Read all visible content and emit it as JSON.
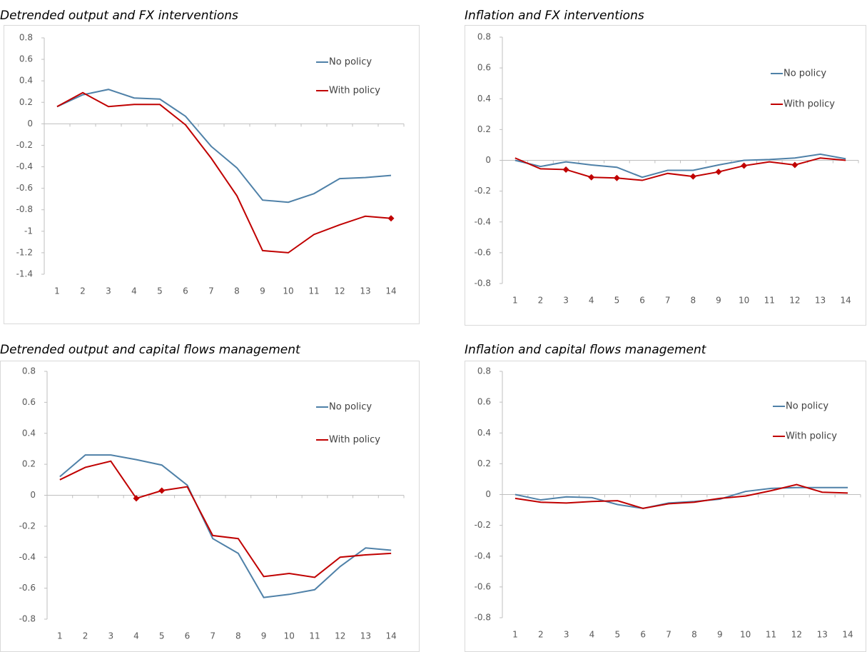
{
  "chart_data": [
    {
      "type": "line",
      "title": "Detrended output and FX interventions",
      "categories": [
        "1",
        "2",
        "3",
        "4",
        "5",
        "6",
        "7",
        "8",
        "9",
        "10",
        "11",
        "12",
        "13",
        "14"
      ],
      "ylim": [
        -1.4,
        0.8
      ],
      "yticks": [
        -1.4,
        -1.2,
        -1,
        -0.8,
        -0.6,
        -0.4,
        -0.2,
        0,
        0.2,
        0.4,
        0.6,
        0.8
      ],
      "legend": "upper right",
      "series": [
        {
          "name": "No policy",
          "color": "#4f81a8",
          "values": [
            0.16,
            0.27,
            0.32,
            0.24,
            0.23,
            0.07,
            -0.21,
            -0.41,
            -0.71,
            -0.73,
            -0.65,
            -0.51,
            -0.5,
            -0.48
          ]
        },
        {
          "name": "With policy",
          "color": "#c00000",
          "values": [
            0.16,
            0.29,
            0.16,
            0.18,
            0.18,
            -0.01,
            -0.32,
            -0.67,
            -1.18,
            -1.2,
            -1.03,
            -0.94,
            -0.86,
            -0.88
          ],
          "markers": [
            false,
            false,
            false,
            false,
            false,
            false,
            false,
            false,
            false,
            false,
            false,
            false,
            false,
            true
          ]
        }
      ]
    },
    {
      "type": "line",
      "title": "Inflation and FX interventions",
      "categories": [
        "1",
        "2",
        "3",
        "4",
        "5",
        "6",
        "7",
        "8",
        "9",
        "10",
        "11",
        "12",
        "13",
        "14"
      ],
      "ylim": [
        -0.8,
        0.8
      ],
      "yticks": [
        -0.8,
        -0.6,
        -0.4,
        -0.2,
        0,
        0.2,
        0.4,
        0.6,
        0.8
      ],
      "legend": "upper right",
      "series": [
        {
          "name": "No policy",
          "color": "#4f81a8",
          "values": [
            0,
            -0.04,
            -0.01,
            -0.03,
            -0.045,
            -0.11,
            -0.065,
            -0.065,
            -0.03,
            0,
            0.005,
            0.015,
            0.04,
            0.01
          ]
        },
        {
          "name": "With policy",
          "color": "#c00000",
          "values": [
            0.015,
            -0.055,
            -0.06,
            -0.11,
            -0.115,
            -0.13,
            -0.085,
            -0.105,
            -0.075,
            -0.035,
            -0.01,
            -0.03,
            0.015,
            0
          ],
          "markers": [
            false,
            false,
            true,
            true,
            true,
            false,
            false,
            true,
            true,
            true,
            false,
            true,
            false,
            false
          ]
        }
      ]
    },
    {
      "type": "line",
      "title": "Detrended output and capital flows management",
      "categories": [
        "1",
        "2",
        "3",
        "4",
        "5",
        "6",
        "7",
        "8",
        "9",
        "10",
        "11",
        "12",
        "13",
        "14"
      ],
      "ylim": [
        -0.8,
        0.8
      ],
      "yticks": [
        -0.8,
        -0.6,
        -0.4,
        -0.2,
        0,
        0.2,
        0.4,
        0.6,
        0.8
      ],
      "legend": "upper right",
      "series": [
        {
          "name": "No policy",
          "color": "#4f81a8",
          "values": [
            0.12,
            0.26,
            0.26,
            0.23,
            0.195,
            0.065,
            -0.28,
            -0.375,
            -0.66,
            -0.64,
            -0.61,
            -0.46,
            -0.34,
            -0.355
          ]
        },
        {
          "name": "With policy",
          "color": "#c00000",
          "values": [
            0.1,
            0.18,
            0.22,
            -0.02,
            0.03,
            0.055,
            -0.26,
            -0.28,
            -0.525,
            -0.505,
            -0.53,
            -0.4,
            -0.385,
            -0.375
          ],
          "markers": [
            false,
            false,
            false,
            true,
            true,
            false,
            false,
            false,
            false,
            false,
            false,
            false,
            false,
            false
          ]
        }
      ]
    },
    {
      "type": "line",
      "title": "Inflation and capital flows management",
      "categories": [
        "1",
        "2",
        "3",
        "4",
        "5",
        "6",
        "7",
        "8",
        "9",
        "10",
        "11",
        "12",
        "13",
        "14"
      ],
      "ylim": [
        -0.8,
        0.8
      ],
      "yticks": [
        -0.8,
        -0.6,
        -0.4,
        -0.2,
        0,
        0.2,
        0.4,
        0.6,
        0.8
      ],
      "legend": "upper right",
      "series": [
        {
          "name": "No policy",
          "color": "#4f81a8",
          "values": [
            0,
            -0.035,
            -0.015,
            -0.02,
            -0.065,
            -0.09,
            -0.055,
            -0.045,
            -0.03,
            0.02,
            0.04,
            0.045,
            0.045,
            0.045
          ]
        },
        {
          "name": "With policy",
          "color": "#c00000",
          "values": [
            -0.025,
            -0.05,
            -0.055,
            -0.045,
            -0.04,
            -0.09,
            -0.06,
            -0.05,
            -0.025,
            -0.01,
            0.025,
            0.065,
            0.015,
            0.01
          ]
        }
      ]
    }
  ]
}
